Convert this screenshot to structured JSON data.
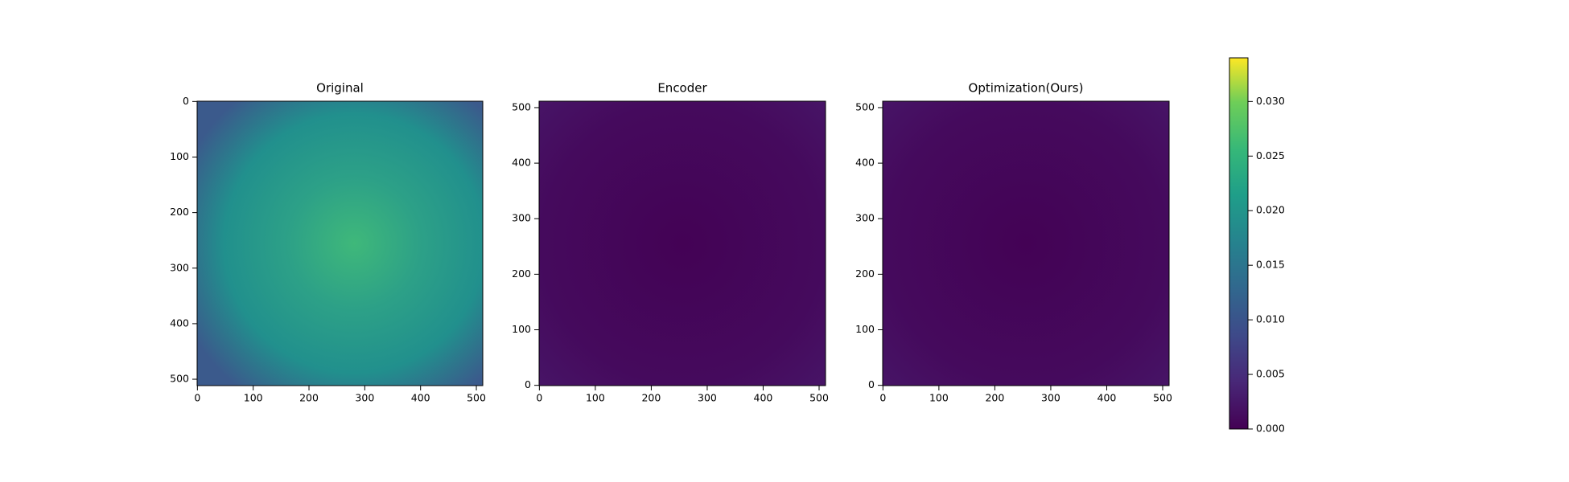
{
  "chart_data": [
    {
      "type": "image",
      "title": "Original",
      "xlim": [
        -0.5,
        511.5
      ],
      "ylim": [
        511.5,
        -0.5
      ],
      "xticks": [
        0,
        100,
        200,
        300,
        400,
        500
      ],
      "yticks": [
        0,
        100,
        200,
        300,
        400,
        500
      ]
    },
    {
      "type": "image",
      "title": "Encoder",
      "xlim": [
        -0.5,
        511.5
      ],
      "ylim": [
        -0.5,
        511.5
      ],
      "xticks": [
        0,
        100,
        200,
        300,
        400,
        500
      ],
      "yticks": [
        0,
        100,
        200,
        300,
        400,
        500
      ]
    },
    {
      "type": "image",
      "title": "Optimization(Ours)",
      "xlim": [
        -0.5,
        511.5
      ],
      "ylim": [
        -0.5,
        511.5
      ],
      "xticks": [
        0,
        100,
        200,
        300,
        400,
        500
      ],
      "yticks": [
        0,
        100,
        200,
        300,
        400,
        500
      ]
    },
    {
      "type": "colorbar",
      "ylim": [
        0,
        0.034
      ],
      "yticks": [
        {
          "value": 0,
          "label": "0.000"
        },
        {
          "value": 0.005,
          "label": "0.005"
        },
        {
          "value": 0.01,
          "label": "0.010"
        },
        {
          "value": 0.015,
          "label": "0.015"
        },
        {
          "value": 0.02,
          "label": "0.020"
        },
        {
          "value": 0.025,
          "label": "0.025"
        },
        {
          "value": 0.03,
          "label": "0.030"
        }
      ]
    }
  ]
}
